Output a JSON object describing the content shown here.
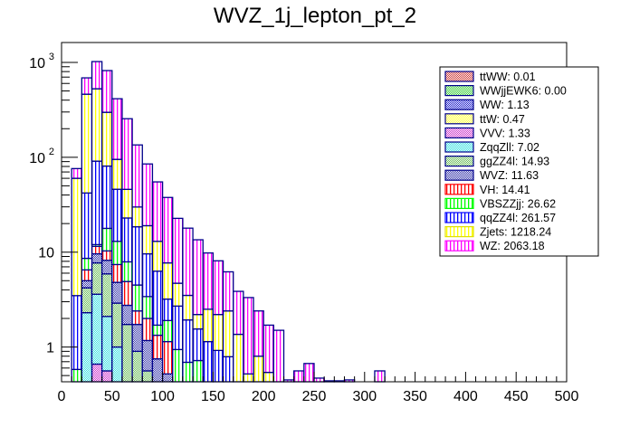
{
  "chart_data": {
    "type": "bar",
    "stacked": true,
    "histogram": true,
    "title": "WVZ_1j_lepton_pt_2",
    "xlabel": "",
    "ylabel": "",
    "xlim": [
      0,
      500
    ],
    "ylim": [
      0.43,
      1620
    ],
    "yscale": "log",
    "bin_width": 10,
    "bin_edges_start": 0,
    "x_ticks": [
      0,
      50,
      100,
      150,
      200,
      250,
      300,
      350,
      400,
      450,
      500
    ],
    "x_tick_labels": [
      "0",
      "50",
      "100",
      "150",
      "200",
      "250",
      "300",
      "350",
      "400",
      "450",
      "500"
    ],
    "y_ticks": [
      1,
      10,
      100,
      1000
    ],
    "y_tick_labels": [
      "1",
      "10",
      "10^2",
      "10^3"
    ],
    "grid": false,
    "legend_position": "top-right",
    "legend": [
      {
        "label": "ttWW: 0.01",
        "color": "#cc3333",
        "pattern": "checker"
      },
      {
        "label": "WWjjEWK6: 0.00",
        "color": "#33cc33",
        "pattern": "checker"
      },
      {
        "label": "WW: 1.13",
        "color": "#1a1acc",
        "pattern": "checker"
      },
      {
        "label": "ttW: 0.47",
        "color": "#ffff33",
        "pattern": "checker"
      },
      {
        "label": "VVV: 1.33",
        "color": "#cc33cc",
        "pattern": "checker"
      },
      {
        "label": "ZqqZll: 7.02",
        "color": "#33e0e0",
        "pattern": "checker"
      },
      {
        "label": "ggZZ4l: 14.93",
        "color": "#66bb55",
        "pattern": "checker"
      },
      {
        "label": "WVZ: 11.63",
        "color": "#3333aa",
        "pattern": "checker"
      },
      {
        "label": "VH: 14.41",
        "color": "#ff0000",
        "pattern": "vlines"
      },
      {
        "label": "VBSZZjj: 26.62",
        "color": "#00ff00",
        "pattern": "vlines"
      },
      {
        "label": "qqZZ4l: 261.57",
        "color": "#0000ff",
        "pattern": "vlines"
      },
      {
        "label": "Zjets: 1218.24",
        "color": "#ffff00",
        "pattern": "vlines"
      },
      {
        "label": "WZ: 2063.18",
        "color": "#ff00ff",
        "pattern": "vlines"
      }
    ],
    "series": [
      {
        "name": "ttWW",
        "color": "#cc3333",
        "pattern": "checker",
        "values": []
      },
      {
        "name": "WWjjEWK6",
        "color": "#33cc33",
        "pattern": "checker",
        "values": []
      },
      {
        "name": "WW",
        "color": "#1a1acc",
        "pattern": "checker",
        "values": []
      },
      {
        "name": "ttW",
        "color": "#ffff33",
        "pattern": "checker",
        "values": []
      },
      {
        "name": "VVV",
        "color": "#cc33cc",
        "pattern": "checker",
        "values": [
          0,
          0,
          0,
          0.66,
          0.56
        ]
      },
      {
        "name": "ZqqZll",
        "color": "#33e0e0",
        "pattern": "checker",
        "values": [
          0,
          0,
          2.3,
          2.94,
          1.54,
          1.0
        ]
      },
      {
        "name": "ggZZ4l",
        "color": "#66bb55",
        "pattern": "checker",
        "values": [
          0,
          0,
          1.9,
          4.1,
          3.8,
          1.9,
          1.73,
          0.9,
          0.56
        ]
      },
      {
        "name": "WVZ",
        "color": "#3333aa",
        "pattern": "checker",
        "values": [
          0,
          0,
          0.8,
          1.9,
          2.3,
          1.9,
          1.02,
          0.83,
          0.61,
          0.75,
          0.52
        ]
      },
      {
        "name": "VH",
        "color": "#ff0000",
        "pattern": "vlines",
        "values": [
          0,
          0,
          1.5,
          1.9,
          2.1,
          2.6,
          2.15,
          0.67,
          0.83,
          0.58,
          0.62
        ]
      },
      {
        "name": "VBSZZjj",
        "color": "#00ff00",
        "pattern": "vlines",
        "values": [
          0,
          0.58,
          2.1,
          0.5,
          7.5,
          5.6,
          3.0,
          2.1,
          1.4,
          0.37,
          0.76,
          0.94,
          0.69,
          0.72
        ]
      },
      {
        "name": "qqZZ4l",
        "color": "#0000ff",
        "pattern": "vlines",
        "values": [
          0,
          2.9,
          33.4,
          79,
          63,
          33,
          15,
          14,
          6.2,
          4.6,
          1.3,
          1.76,
          1.24,
          0.83,
          1.14,
          0.92,
          0.79
        ]
      },
      {
        "name": "Zjets",
        "color": "#ffff00",
        "pattern": "vlines",
        "values": [
          0,
          56.5,
          420,
          436,
          217,
          49,
          23,
          11.4,
          9.4,
          6.7,
          4.5,
          2.0,
          1.57,
          0.65,
          1.36,
          1.28,
          1.61,
          1.36,
          0.52,
          0.8,
          0.54
        ]
      },
      {
        "name": "WZ",
        "color": "#ff00ff",
        "pattern": "vlines",
        "values": [
          0,
          16,
          225,
          493,
          522,
          319,
          209,
          105,
          66,
          42,
          30,
          18,
          14.4,
          11.3,
          7.3,
          5.9,
          3.8,
          2.5,
          2.8,
          1.6,
          1.16,
          1.5,
          0.45,
          0.56,
          0.67,
          0.47,
          0.44,
          0.44,
          0.45,
          0,
          0.43,
          0.56
        ]
      }
    ]
  }
}
